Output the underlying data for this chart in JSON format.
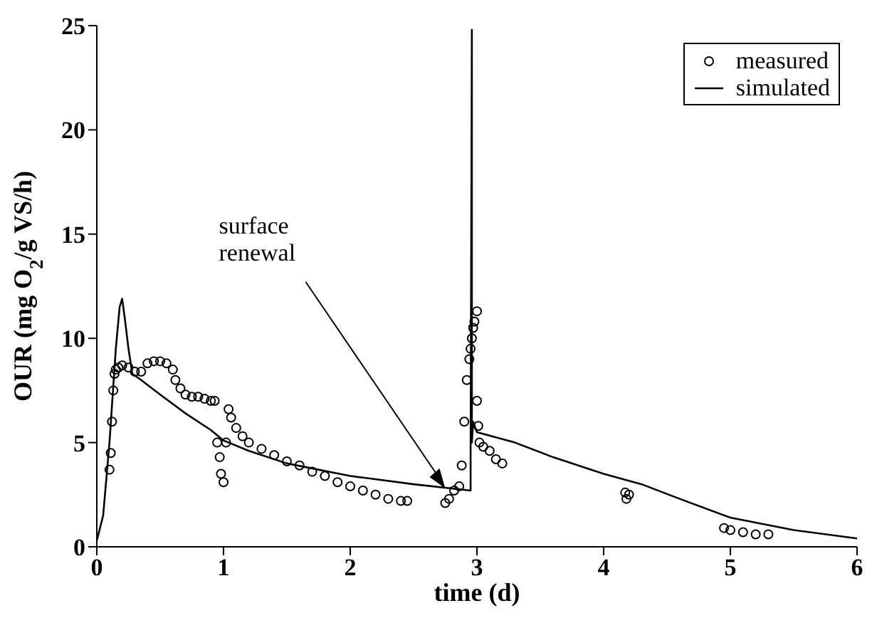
{
  "chart_data": {
    "type": "scatter",
    "xlabel": "time (d)",
    "ylabel": "OUR (mg O$_{2}$/g VS/h)",
    "xlim": [
      0,
      6
    ],
    "ylim": [
      0,
      25
    ],
    "xticks": [
      0,
      1,
      2,
      3,
      4,
      5,
      6
    ],
    "yticks": [
      0,
      5,
      10,
      15,
      20,
      25
    ],
    "legend": "top right",
    "annotations": [
      {
        "text": "surface renewal",
        "x": 2.75,
        "y": 2.8
      }
    ],
    "series": [
      {
        "name": "measured",
        "marker": "circle",
        "color": "#000000",
        "x": [
          0.1,
          0.11,
          0.12,
          0.13,
          0.14,
          0.15,
          0.17,
          0.2,
          0.25,
          0.3,
          0.35,
          0.4,
          0.45,
          0.5,
          0.55,
          0.6,
          0.62,
          0.66,
          0.7,
          0.75,
          0.8,
          0.85,
          0.9,
          0.93,
          0.95,
          0.97,
          0.98,
          1.0,
          1.02,
          1.04,
          1.06,
          1.1,
          1.15,
          1.2,
          1.3,
          1.4,
          1.5,
          1.6,
          1.7,
          1.8,
          1.9,
          2.0,
          2.1,
          2.2,
          2.3,
          2.4,
          2.45,
          2.75,
          2.78,
          2.82,
          2.86,
          2.88,
          2.9,
          2.92,
          2.94,
          2.95,
          2.96,
          2.97,
          2.98,
          3.0,
          3.0,
          3.01,
          3.02,
          3.05,
          3.1,
          3.15,
          3.2,
          4.17,
          4.18,
          4.2,
          4.95,
          5.0,
          5.1,
          5.2,
          5.3
        ],
        "values": [
          3.7,
          4.5,
          6.0,
          7.5,
          8.3,
          8.5,
          8.6,
          8.7,
          8.6,
          8.4,
          8.4,
          8.8,
          8.9,
          8.9,
          8.8,
          8.5,
          8.0,
          7.6,
          7.3,
          7.2,
          7.2,
          7.1,
          7.0,
          7.0,
          5.0,
          4.3,
          3.5,
          3.1,
          5.0,
          6.6,
          6.2,
          5.7,
          5.3,
          5.0,
          4.7,
          4.4,
          4.1,
          3.9,
          3.6,
          3.4,
          3.1,
          2.9,
          2.7,
          2.5,
          2.3,
          2.2,
          2.2,
          2.1,
          2.3,
          2.7,
          2.9,
          3.9,
          6.0,
          8.0,
          9.0,
          9.5,
          10.0,
          10.5,
          10.8,
          11.3,
          7.0,
          5.8,
          5.0,
          4.8,
          4.6,
          4.2,
          4.0,
          2.6,
          2.3,
          2.5,
          0.9,
          0.8,
          0.7,
          0.6,
          0.6
        ]
      },
      {
        "name": "simulated",
        "type": "line",
        "color": "#000000",
        "x": [
          0,
          0.05,
          0.1,
          0.15,
          0.18,
          0.2,
          0.22,
          0.25,
          0.28,
          0.35,
          0.5,
          0.7,
          0.9,
          1.0,
          1.2,
          1.5,
          2.0,
          2.5,
          2.95,
          2.95,
          2.96,
          2.96,
          2.97,
          3.0,
          3.3,
          3.6,
          4.0,
          4.3,
          4.6,
          5.0,
          5.5,
          6.0
        ],
        "values": [
          0.3,
          1.5,
          5.0,
          9.5,
          11.5,
          11.9,
          11.0,
          9.5,
          8.3,
          8.0,
          7.3,
          6.4,
          5.6,
          5.1,
          4.6,
          4.0,
          3.4,
          3.0,
          2.7,
          4.5,
          24.8,
          5.0,
          6.0,
          5.5,
          5.0,
          4.3,
          3.5,
          3.0,
          2.3,
          1.4,
          0.8,
          0.4
        ]
      }
    ]
  }
}
